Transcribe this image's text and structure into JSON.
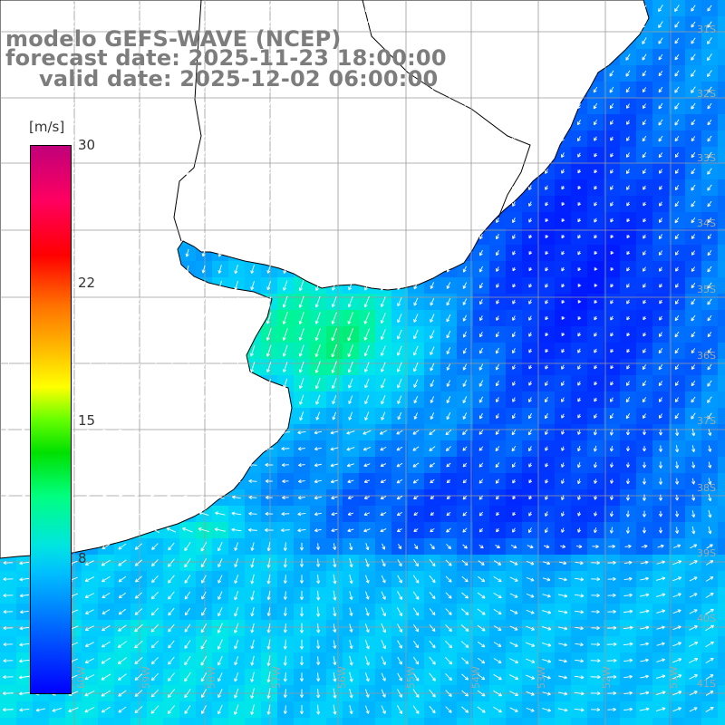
{
  "title": {
    "line1": "modelo GEFS-WAVE (NCEP)",
    "line2": "forecast date: 2025-11-23 18:00:00",
    "line3": "valid date: 2025-12-02 06:00:00"
  },
  "colorbar": {
    "unit": "[m/s]",
    "ticks": [
      "30",
      "22",
      "15",
      "8"
    ]
  },
  "lat_labels": [
    "31S",
    "32S",
    "33S",
    "34S",
    "35S",
    "36S",
    "37S",
    "38S",
    "39S",
    "40S",
    "41S"
  ],
  "lon_labels": [
    "60W",
    "59W",
    "58W",
    "57W",
    "56W",
    "55W",
    "54W",
    "53W",
    "52W",
    "51W"
  ],
  "colors": {
    "land": "#ffffff",
    "coast": "#000000",
    "grid": "#9a9a9a",
    "arrows": "#ffffff",
    "title": "#7d7d7d"
  },
  "wind_field": {
    "units": "m/s",
    "min": 0,
    "max": 30,
    "description_regions": [
      "estuary-high",
      "open-ocean-low",
      "southern-moderate"
    ]
  }
}
